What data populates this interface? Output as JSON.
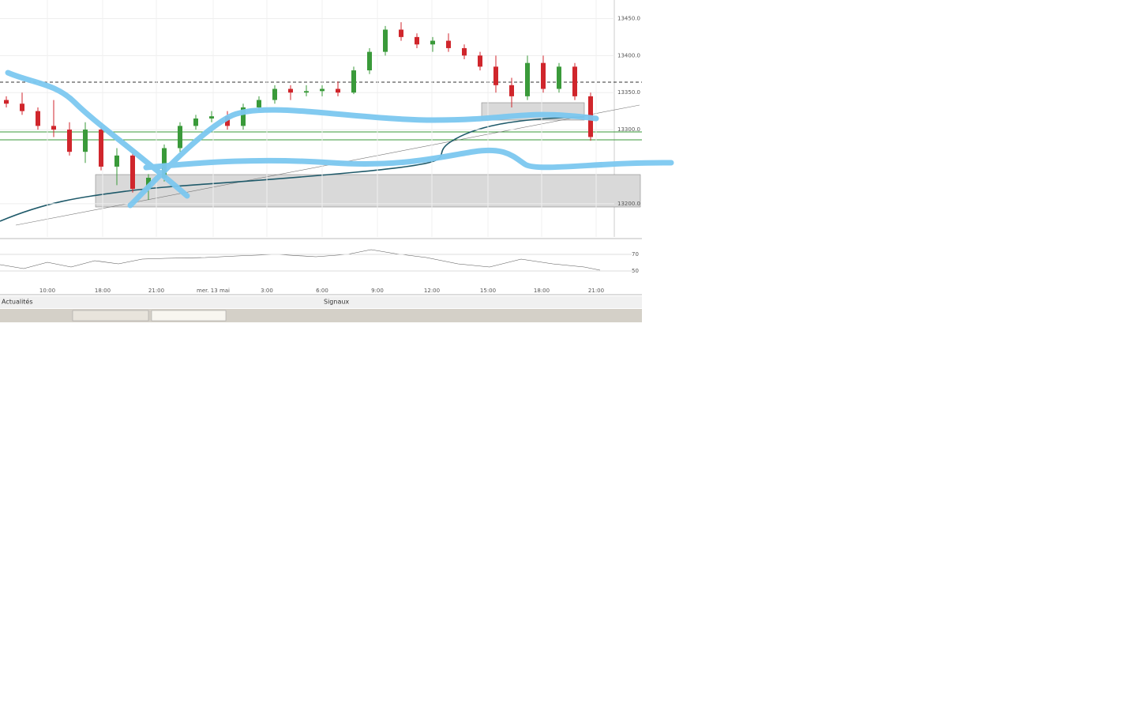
{
  "chart_data": {
    "type": "candlestick",
    "ylim": [
      13155,
      13475
    ],
    "yticks": [
      {
        "value": 13450,
        "label": "13450.0"
      },
      {
        "value": 13400,
        "label": "13400.0"
      },
      {
        "value": 13350,
        "label": "13350.0"
      },
      {
        "value": 13300,
        "label": "13300.0"
      },
      {
        "value": 13200,
        "label": "13200.0"
      }
    ],
    "x_labels": [
      "10:00",
      "18:00",
      "21:00",
      "mer. 13 mai",
      "3:00",
      "6:00",
      "9:00",
      "12:00",
      "15:00",
      "18:00",
      "21:00"
    ],
    "up_color": "#3a9a3a",
    "down_color": "#d0262c",
    "ohlc": [
      [
        13340,
        13345,
        13330,
        13335
      ],
      [
        13335,
        13350,
        13320,
        13325
      ],
      [
        13325,
        13330,
        13300,
        13305
      ],
      [
        13305,
        13340,
        13290,
        13300
      ],
      [
        13300,
        13310,
        13265,
        13270
      ],
      [
        13270,
        13310,
        13255,
        13300
      ],
      [
        13300,
        13305,
        13245,
        13250
      ],
      [
        13250,
        13275,
        13225,
        13265
      ],
      [
        13265,
        13270,
        13215,
        13220
      ],
      [
        13220,
        13240,
        13205,
        13235
      ],
      [
        13235,
        13280,
        13230,
        13275
      ],
      [
        13275,
        13310,
        13270,
        13305
      ],
      [
        13305,
        13320,
        13300,
        13315
      ],
      [
        13315,
        13325,
        13310,
        13318
      ],
      [
        13318,
        13325,
        13300,
        13305
      ],
      [
        13305,
        13335,
        13300,
        13330
      ],
      [
        13330,
        13345,
        13325,
        13340
      ],
      [
        13340,
        13360,
        13335,
        13355
      ],
      [
        13355,
        13360,
        13340,
        13350
      ],
      [
        13350,
        13360,
        13345,
        13352
      ],
      [
        13352,
        13360,
        13345,
        13355
      ],
      [
        13355,
        13365,
        13345,
        13350
      ],
      [
        13350,
        13385,
        13348,
        13380
      ],
      [
        13380,
        13410,
        13375,
        13405
      ],
      [
        13405,
        13440,
        13400,
        13435
      ],
      [
        13435,
        13445,
        13420,
        13425
      ],
      [
        13425,
        13430,
        13410,
        13415
      ],
      [
        13415,
        13425,
        13405,
        13420
      ],
      [
        13420,
        13430,
        13405,
        13410
      ],
      [
        13410,
        13415,
        13395,
        13400
      ],
      [
        13400,
        13405,
        13380,
        13385
      ],
      [
        13385,
        13400,
        13350,
        13360
      ],
      [
        13360,
        13370,
        13330,
        13345
      ],
      [
        13345,
        13400,
        13340,
        13390
      ],
      [
        13390,
        13400,
        13350,
        13355
      ],
      [
        13355,
        13390,
        13350,
        13385
      ],
      [
        13385,
        13390,
        13340,
        13345
      ],
      [
        13345,
        13350,
        13285,
        13290
      ]
    ],
    "rsi_ticks": [
      70,
      50
    ]
  },
  "footer": {
    "tabs": [
      "Actualités",
      "Signaux"
    ]
  }
}
